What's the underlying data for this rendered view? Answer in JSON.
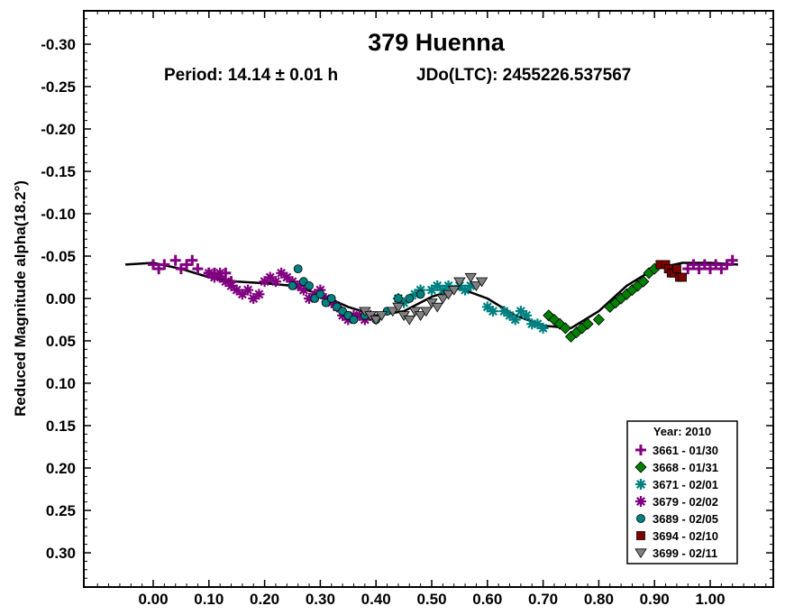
{
  "chart_data": {
    "type": "scatter",
    "title": "379 Huenna",
    "subtitle_period": "Period: 14.14 ± 0.01 h",
    "subtitle_epoch": "JDo(LTC): 2455226.537567",
    "ylabel": "Reduced Magnitude alpha(18.2°)",
    "xlabel": "",
    "xlim": [
      -0.1,
      1.12
    ],
    "ylim": [
      0.35,
      -0.35
    ],
    "y_inverted": true,
    "x_ticks": [
      "0.00",
      "0.10",
      "0.20",
      "0.30",
      "0.40",
      "0.50",
      "0.60",
      "0.70",
      "0.80",
      "0.90",
      "1.00"
    ],
    "y_ticks": [
      "-0.30",
      "-0.25",
      "-0.20",
      "-0.15",
      "-0.10",
      "-0.05",
      "0.00",
      "0.05",
      "0.10",
      "0.15",
      "0.20",
      "0.25",
      "0.30"
    ],
    "grid": false,
    "legend_placement": "bottom-right",
    "legend_title": "Year: 2010",
    "series": [
      {
        "name": "3661 - 01/30",
        "marker": "plus",
        "color": "#800080",
        "x": [
          0.0,
          0.01,
          0.02,
          0.04,
          0.05,
          0.06,
          0.07,
          0.08,
          0.1,
          0.11,
          0.12,
          0.13,
          0.14,
          0.96,
          0.97,
          0.98,
          0.99,
          1.0,
          1.01,
          1.02,
          1.03,
          1.04
        ],
        "y": [
          -0.04,
          -0.035,
          -0.04,
          -0.045,
          -0.035,
          -0.04,
          -0.045,
          -0.035,
          -0.03,
          -0.03,
          -0.025,
          -0.03,
          -0.02,
          -0.035,
          -0.04,
          -0.035,
          -0.04,
          -0.035,
          -0.04,
          -0.035,
          -0.04,
          -0.045
        ]
      },
      {
        "name": "3668 - 01/31",
        "marker": "diamond",
        "color": "#008000",
        "x": [
          0.71,
          0.72,
          0.73,
          0.74,
          0.75,
          0.76,
          0.77,
          0.78,
          0.8,
          0.82,
          0.83,
          0.84,
          0.85,
          0.86,
          0.87,
          0.88,
          0.89,
          0.9
        ],
        "y": [
          0.02,
          0.025,
          0.03,
          0.035,
          0.045,
          0.04,
          0.035,
          0.03,
          0.025,
          0.01,
          0.005,
          0.0,
          -0.005,
          -0.01,
          -0.015,
          -0.02,
          -0.03,
          -0.035
        ]
      },
      {
        "name": "3671 - 02/01",
        "marker": "star",
        "color": "#008080",
        "x": [
          0.44,
          0.45,
          0.47,
          0.48,
          0.5,
          0.51,
          0.52,
          0.53,
          0.55,
          0.56,
          0.57,
          0.6,
          0.61,
          0.63,
          0.64,
          0.65,
          0.66,
          0.67,
          0.68,
          0.69,
          0.7
        ],
        "y": [
          0.0,
          0.005,
          -0.005,
          -0.01,
          -0.01,
          -0.015,
          -0.01,
          -0.015,
          -0.015,
          -0.01,
          -0.015,
          0.01,
          0.015,
          0.015,
          0.02,
          0.025,
          0.015,
          0.02,
          0.03,
          0.03,
          0.035
        ]
      },
      {
        "name": "3679 - 02/02",
        "marker": "asterisk",
        "color": "#800080",
        "x": [
          0.1,
          0.11,
          0.12,
          0.13,
          0.14,
          0.15,
          0.16,
          0.17,
          0.18,
          0.19,
          0.2,
          0.21,
          0.22,
          0.23,
          0.24,
          0.25,
          0.26,
          0.27,
          0.28,
          0.29,
          0.3,
          0.31,
          0.32,
          0.33,
          0.34,
          0.35,
          0.36,
          0.37,
          0.38,
          0.39
        ],
        "y": [
          -0.03,
          -0.025,
          -0.03,
          -0.02,
          -0.015,
          -0.01,
          -0.005,
          -0.01,
          0.0,
          -0.005,
          -0.02,
          -0.025,
          -0.02,
          -0.03,
          -0.025,
          -0.02,
          -0.015,
          -0.01,
          0.0,
          -0.005,
          -0.01,
          0.0,
          0.005,
          0.01,
          0.02,
          0.025,
          0.02,
          0.02,
          0.025,
          0.02
        ]
      },
      {
        "name": "3689 - 02/05",
        "marker": "circle",
        "color": "#008080",
        "x": [
          0.25,
          0.26,
          0.27,
          0.28,
          0.29,
          0.3,
          0.31,
          0.32,
          0.33,
          0.34,
          0.35,
          0.36,
          0.38,
          0.4,
          0.42,
          0.44,
          0.46,
          0.48
        ],
        "y": [
          -0.015,
          -0.035,
          -0.02,
          -0.015,
          0.0,
          -0.005,
          0.005,
          0.0,
          0.01,
          0.015,
          0.02,
          0.025,
          0.02,
          0.025,
          0.015,
          0.0,
          0.0,
          -0.005
        ]
      },
      {
        "name": "3694 - 02/10",
        "marker": "square",
        "color": "#800000",
        "x": [
          0.91,
          0.92,
          0.925,
          0.93,
          0.935,
          0.94,
          0.945,
          0.95
        ],
        "y": [
          -0.04,
          -0.04,
          -0.035,
          -0.03,
          -0.03,
          -0.035,
          -0.025,
          -0.025
        ]
      },
      {
        "name": "3699 - 02/11",
        "marker": "triangle-down",
        "color": "#808080",
        "x": [
          0.38,
          0.39,
          0.4,
          0.41,
          0.43,
          0.44,
          0.45,
          0.46,
          0.47,
          0.48,
          0.49,
          0.5,
          0.51,
          0.52,
          0.53,
          0.54,
          0.55,
          0.57,
          0.58,
          0.59
        ],
        "y": [
          0.015,
          0.02,
          0.025,
          0.02,
          0.015,
          0.01,
          0.02,
          0.025,
          0.015,
          0.02,
          0.015,
          0.005,
          0.01,
          0.0,
          -0.005,
          -0.01,
          -0.02,
          -0.025,
          -0.015,
          -0.02
        ]
      }
    ],
    "fit_curve": {
      "color": "#000000",
      "x": [
        -0.05,
        0.0,
        0.05,
        0.1,
        0.15,
        0.2,
        0.25,
        0.3,
        0.35,
        0.4,
        0.45,
        0.5,
        0.55,
        0.6,
        0.65,
        0.7,
        0.75,
        0.8,
        0.85,
        0.9,
        0.95,
        1.0,
        1.05
      ],
      "y": [
        -0.04,
        -0.042,
        -0.035,
        -0.025,
        -0.02,
        -0.018,
        -0.015,
        -0.005,
        0.01,
        0.02,
        0.015,
        -0.002,
        -0.012,
        0.0,
        0.02,
        0.032,
        0.035,
        0.015,
        -0.015,
        -0.035,
        -0.042,
        -0.042,
        -0.04
      ]
    }
  }
}
